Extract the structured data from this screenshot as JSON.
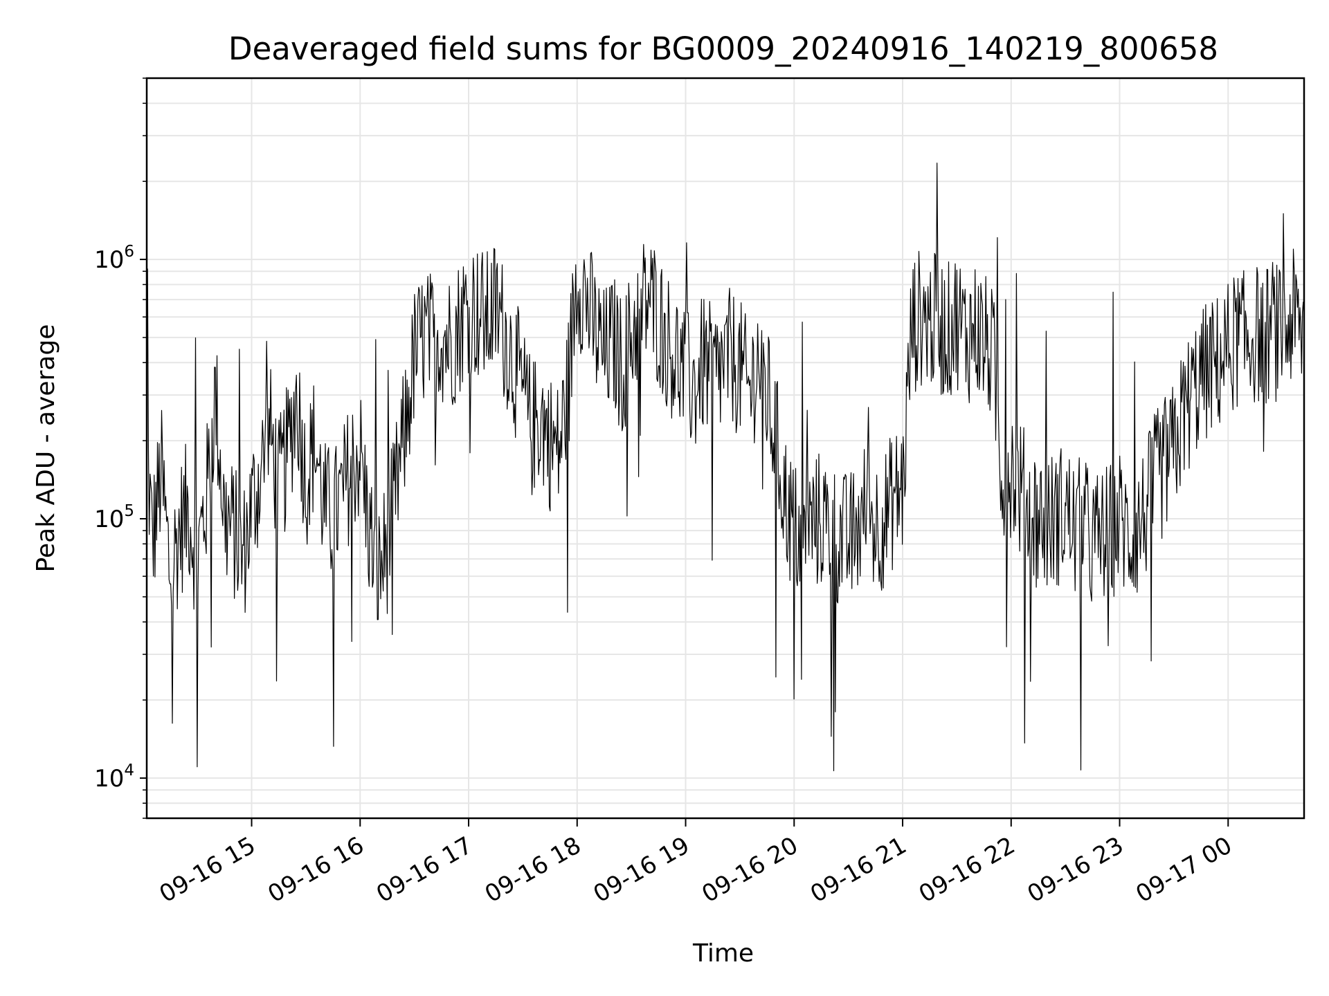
{
  "chart_data": {
    "type": "line",
    "title": "Deaveraged field sums for BG0009_20240916_140219_800658",
    "xlabel": "Time",
    "ylabel": "Peak ADU - average",
    "yscale": "log",
    "ylim": [
      7000,
      5000000
    ],
    "xlim": [
      "2024-09-16 14:02",
      "2024-09-17 00:42"
    ],
    "grid": true,
    "line_color": "#000000",
    "grid_color": "#e6e6e6",
    "x_ticks": [
      {
        "value": "2024-09-16 15:00",
        "label": "09-16 15"
      },
      {
        "value": "2024-09-16 16:00",
        "label": "09-16 16"
      },
      {
        "value": "2024-09-16 17:00",
        "label": "09-16 17"
      },
      {
        "value": "2024-09-16 18:00",
        "label": "09-16 18"
      },
      {
        "value": "2024-09-16 19:00",
        "label": "09-16 19"
      },
      {
        "value": "2024-09-16 20:00",
        "label": "09-16 20"
      },
      {
        "value": "2024-09-16 21:00",
        "label": "09-16 21"
      },
      {
        "value": "2024-09-16 22:00",
        "label": "09-16 22"
      },
      {
        "value": "2024-09-16 23:00",
        "label": "09-16 23"
      },
      {
        "value": "2024-09-17 00:00",
        "label": "09-17 00"
      }
    ],
    "y_ticks": [
      {
        "value": 10000,
        "base": "10",
        "exp": "4"
      },
      {
        "value": 100000,
        "base": "10",
        "exp": "5"
      },
      {
        "value": 1000000,
        "base": "10",
        "exp": "6"
      }
    ],
    "series": [
      {
        "x": [
          "2024-09-16 14:02",
          "2024-09-16 14:05",
          "2024-09-16 14:10",
          "2024-09-16 14:15",
          "2024-09-16 14:20",
          "2024-09-16 14:25",
          "2024-09-16 14:30",
          "2024-09-16 14:35",
          "2024-09-16 14:40",
          "2024-09-16 14:45",
          "2024-09-16 14:50",
          "2024-09-16 14:55",
          "2024-09-16 15:00",
          "2024-09-16 15:05",
          "2024-09-16 15:10",
          "2024-09-16 15:15",
          "2024-09-16 15:20",
          "2024-09-16 15:25",
          "2024-09-16 15:30",
          "2024-09-16 15:35",
          "2024-09-16 15:40",
          "2024-09-16 15:45",
          "2024-09-16 15:50",
          "2024-09-16 15:55",
          "2024-09-16 16:00",
          "2024-09-16 16:05",
          "2024-09-16 16:10",
          "2024-09-16 16:15",
          "2024-09-16 16:20",
          "2024-09-16 16:25",
          "2024-09-16 16:30",
          "2024-09-16 16:35",
          "2024-09-16 16:40",
          "2024-09-16 16:45",
          "2024-09-16 16:50",
          "2024-09-16 16:55",
          "2024-09-16 17:00",
          "2024-09-16 17:05",
          "2024-09-16 17:10",
          "2024-09-16 17:15",
          "2024-09-16 17:20",
          "2024-09-16 17:25",
          "2024-09-16 17:30",
          "2024-09-16 17:35",
          "2024-09-16 17:40",
          "2024-09-16 17:45",
          "2024-09-16 17:50",
          "2024-09-16 17:55",
          "2024-09-16 18:00",
          "2024-09-16 18:05",
          "2024-09-16 18:10",
          "2024-09-16 18:15",
          "2024-09-16 18:20",
          "2024-09-16 18:25",
          "2024-09-16 18:30",
          "2024-09-16 18:35",
          "2024-09-16 18:40",
          "2024-09-16 18:45",
          "2024-09-16 18:50",
          "2024-09-16 18:55",
          "2024-09-16 19:00",
          "2024-09-16 19:05",
          "2024-09-16 19:10",
          "2024-09-16 19:15",
          "2024-09-16 19:20",
          "2024-09-16 19:25",
          "2024-09-16 19:30",
          "2024-09-16 19:35",
          "2024-09-16 19:40",
          "2024-09-16 19:45",
          "2024-09-16 19:50",
          "2024-09-16 19:55",
          "2024-09-16 20:00",
          "2024-09-16 20:05",
          "2024-09-16 20:10",
          "2024-09-16 20:15",
          "2024-09-16 20:20",
          "2024-09-16 20:25",
          "2024-09-16 20:30",
          "2024-09-16 20:35",
          "2024-09-16 20:40",
          "2024-09-16 20:45",
          "2024-09-16 20:50",
          "2024-09-16 20:55",
          "2024-09-16 21:00",
          "2024-09-16 21:05",
          "2024-09-16 21:10",
          "2024-09-16 21:15",
          "2024-09-16 21:20",
          "2024-09-16 21:25",
          "2024-09-16 21:30",
          "2024-09-16 21:35",
          "2024-09-16 21:40",
          "2024-09-16 21:45",
          "2024-09-16 21:50",
          "2024-09-16 21:55",
          "2024-09-16 22:00",
          "2024-09-16 22:05",
          "2024-09-16 22:10",
          "2024-09-16 22:15",
          "2024-09-16 22:20",
          "2024-09-16 22:25",
          "2024-09-16 22:30",
          "2024-09-16 22:35",
          "2024-09-16 22:40",
          "2024-09-16 22:45",
          "2024-09-16 22:50",
          "2024-09-16 22:55",
          "2024-09-16 23:00",
          "2024-09-16 23:05",
          "2024-09-16 23:10",
          "2024-09-16 23:15",
          "2024-09-16 23:20",
          "2024-09-16 23:25",
          "2024-09-16 23:30",
          "2024-09-16 23:35",
          "2024-09-16 23:40",
          "2024-09-16 23:45",
          "2024-09-16 23:50",
          "2024-09-16 23:55",
          "2024-09-17 00:00",
          "2024-09-17 00:05",
          "2024-09-17 00:10",
          "2024-09-17 00:15",
          "2024-09-17 00:20",
          "2024-09-17 00:25",
          "2024-09-17 00:30",
          "2024-09-17 00:35",
          "2024-09-17 00:40",
          "2024-09-17 00:42"
        ],
        "y": [
          200000,
          80000,
          150000,
          60000,
          90000,
          110000,
          70000,
          120000,
          300000,
          100000,
          90000,
          70000,
          110000,
          150000,
          220000,
          130000,
          180000,
          300000,
          140000,
          200000,
          110000,
          100000,
          120000,
          160000,
          180000,
          90000,
          60000,
          80000,
          130000,
          220000,
          420000,
          500000,
          480000,
          520000,
          480000,
          560000,
          680000,
          620000,
          580000,
          650000,
          520000,
          400000,
          300000,
          220000,
          250000,
          200000,
          180000,
          320000,
          900000,
          700000,
          520000,
          420000,
          480000,
          380000,
          500000,
          650000,
          700000,
          600000,
          480000,
          420000,
          350000,
          320000,
          400000,
          350000,
          380000,
          420000,
          380000,
          300000,
          420000,
          300000,
          200000,
          120000,
          90000,
          85000,
          95000,
          100000,
          90000,
          85000,
          80000,
          90000,
          110000,
          95000,
          100000,
          120000,
          130000,
          550000,
          600000,
          580000,
          560000,
          520000,
          600000,
          500000,
          550000,
          480000,
          420000,
          150000,
          160000,
          130000,
          110000,
          100000,
          95000,
          100000,
          110000,
          90000,
          95000,
          80000,
          85000,
          90000,
          100000,
          85000,
          90000,
          110000,
          140000,
          160000,
          180000,
          250000,
          300000,
          350000,
          380000,
          400000,
          450000,
          500000,
          480000,
          520000,
          500000,
          550000,
          480000,
          600000,
          520000,
          550000
        ]
      }
    ]
  }
}
